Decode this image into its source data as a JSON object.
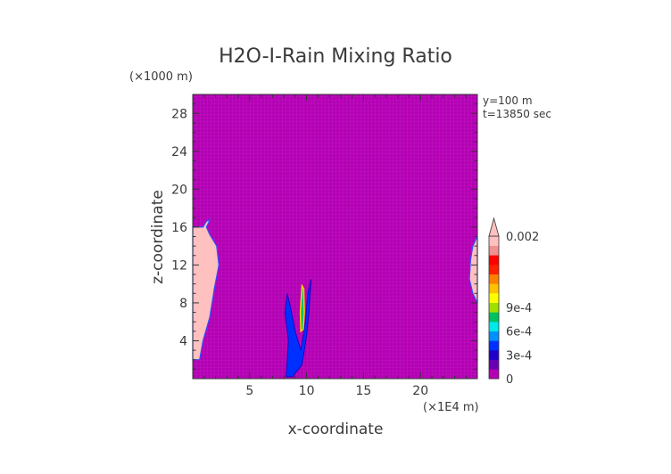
{
  "chart_data": {
    "type": "heatmap",
    "title": "H2O-I-Rain Mixing Ratio",
    "xlabel": "x-coordinate",
    "ylabel": "z-coordinate",
    "x_unit": "(×1E4 m)",
    "y_unit": "(×1000 m)",
    "xlim": [
      0,
      25
    ],
    "ylim": [
      0,
      30
    ],
    "x_ticks": [
      5,
      10,
      15,
      20
    ],
    "y_ticks": [
      4,
      8,
      12,
      16,
      20,
      24,
      28
    ],
    "annotations": [
      "y=100 m",
      "t=13850 sec"
    ],
    "background_value": 0,
    "colorbar": {
      "labels": [
        {
          "value": 0.002,
          "text": "0.002"
        },
        {
          "value": 0.0009,
          "text": "9e-4"
        },
        {
          "value": 0.0006,
          "text": "6e-4"
        },
        {
          "value": 0.0003,
          "text": "3e-4"
        },
        {
          "value": 0,
          "text": "0"
        }
      ],
      "colors": [
        "#b400b4",
        "#6a00b4",
        "#2000c8",
        "#0030ff",
        "#0090ff",
        "#00e8e8",
        "#00c060",
        "#a0e000",
        "#ffff00",
        "#ffc000",
        "#ff8000",
        "#ff2000",
        "#ff0000",
        "#f09090",
        "#ffc0c0"
      ],
      "extend_max": true
    },
    "regions": [
      {
        "description": "left edge high",
        "value": 0.002,
        "x": [
          0,
          0.6,
          0.9,
          1.5,
          1.9,
          2.3,
          2.1,
          1.5,
          1.2,
          1.4,
          1.5,
          1.2,
          0.9,
          0
        ],
        "y": [
          2.0,
          2.0,
          4.0,
          6.5,
          9.5,
          12.0,
          14.0,
          15.2,
          16.0,
          16.5,
          16.8,
          16.6,
          16.0,
          16.0
        ]
      },
      {
        "description": "right edge high",
        "value": 0.002,
        "x": [
          25,
          25,
          24.6,
          24.4,
          24.3,
          24.6,
          25
        ],
        "y": [
          8.0,
          15.0,
          14.0,
          12.5,
          10.5,
          9.0,
          8.0
        ]
      },
      {
        "description": "center core",
        "value": 0.0009,
        "x": [
          9.5,
          9.7,
          9.8,
          9.75,
          9.6,
          9.45
        ],
        "y": [
          5.0,
          5.2,
          7.0,
          9.5,
          9.8,
          7.0
        ]
      }
    ]
  }
}
